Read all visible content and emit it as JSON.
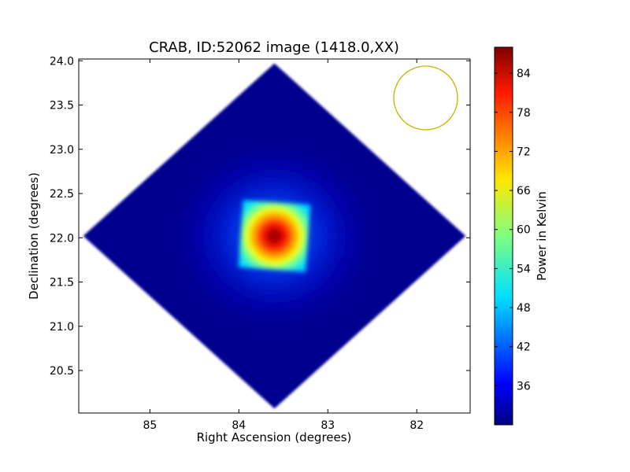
{
  "chart_data": {
    "type": "heatmap",
    "title": "CRAB, ID:52062 image (1418.0,XX)",
    "xlabel": "Right Ascension (degrees)",
    "ylabel": "Declination (degrees)",
    "xlim": [
      85.8,
      81.4
    ],
    "ylim": [
      20.02,
      24.02
    ],
    "x_ticks": [
      85,
      84,
      83,
      82
    ],
    "y_ticks": [
      20.5,
      21.0,
      21.5,
      22.0,
      22.5,
      23.0,
      23.5,
      24.0
    ],
    "x_tick_labels": [
      "85",
      "84",
      "83",
      "82"
    ],
    "y_tick_labels": [
      "20.5",
      "21.0",
      "21.5",
      "22.0",
      "22.5",
      "23.0",
      "23.5",
      "24.0"
    ],
    "source_peak": {
      "ra": 83.6,
      "dec": 22.02,
      "value": 87
    },
    "source_core_halfwidth_deg": 0.38,
    "background_value": 31,
    "map_extent_diamond": {
      "top": {
        "ra": 83.6,
        "dec": 23.97
      },
      "right": {
        "ra": 81.45,
        "dec": 22.02
      },
      "bottom": {
        "ra": 83.6,
        "dec": 20.07
      },
      "left": {
        "ra": 85.75,
        "dec": 22.02
      }
    },
    "beam_circle": {
      "ra": 81.9,
      "dec": 23.58,
      "radius_deg": 0.36,
      "color": "#c8b400"
    },
    "colorbar": {
      "label": "Power in Kelvin",
      "min": 30,
      "max": 88,
      "ticks": [
        36,
        42,
        48,
        54,
        60,
        66,
        72,
        78,
        84
      ],
      "tick_labels": [
        "36",
        "42",
        "48",
        "54",
        "60",
        "66",
        "72",
        "78",
        "84"
      ],
      "colormap": "jet"
    },
    "grid": false
  }
}
